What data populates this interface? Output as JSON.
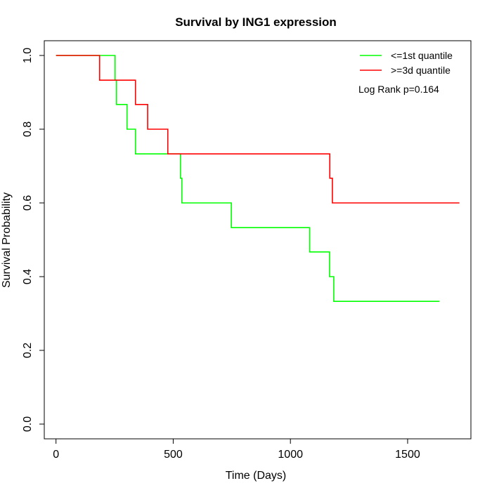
{
  "chart_data": {
    "type": "line",
    "title": "Survival by ING1 expression",
    "xlabel": "Time (Days)",
    "ylabel": "Survival Probability",
    "xlim": [
      -50,
      1770
    ],
    "ylim": [
      -0.04,
      1.04
    ],
    "xticks": [
      0,
      500,
      1000,
      1500
    ],
    "yticks": [
      0.0,
      0.2,
      0.4,
      0.6,
      0.8,
      1.0
    ],
    "ytick_labels": [
      "0.0",
      "0.2",
      "0.4",
      "0.6",
      "0.8",
      "1.0"
    ],
    "legend_position": "top-right",
    "annotation": "Log Rank p=0.164",
    "series": [
      {
        "name": "<=1st quantile",
        "color": "#00ff00",
        "x": [
          0,
          252,
          258,
          303,
          339,
          531,
          537,
          748,
          1082,
          1167,
          1185,
          1636
        ],
        "y": [
          1.0,
          0.933,
          0.867,
          0.8,
          0.733,
          0.667,
          0.6,
          0.533,
          0.467,
          0.4,
          0.333,
          0.333
        ]
      },
      {
        "name": ">=3d quantile",
        "color": "#ff0000",
        "x": [
          0,
          186,
          339,
          391,
          477,
          1168,
          1179,
          1721
        ],
        "y": [
          1.0,
          0.933,
          0.867,
          0.8,
          0.733,
          0.667,
          0.6,
          0.6
        ]
      }
    ]
  }
}
